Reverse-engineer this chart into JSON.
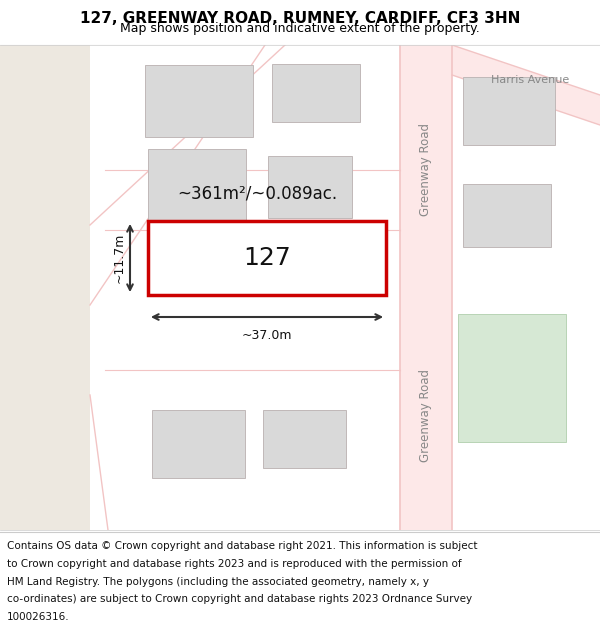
{
  "title": "127, GREENWAY ROAD, RUMNEY, CARDIFF, CF3 3HN",
  "subtitle": "Map shows position and indicative extent of the property.",
  "footer_lines": [
    "Contains OS data © Crown copyright and database right 2021. This information is subject",
    "to Crown copyright and database rights 2023 and is reproduced with the permission of",
    "HM Land Registry. The polygons (including the associated geometry, namely x, y",
    "co-ordinates) are subject to Crown copyright and database rights 2023 Ordnance Survey",
    "100026316."
  ],
  "bg_left_color": "#ede8e0",
  "road_color": "#f2c4c4",
  "road_fill": "#fde8e8",
  "building_fill": "#d9d9d9",
  "building_edge": "#c0b8b8",
  "highlight_fill": "#ffffff",
  "highlight_edge": "#cc0000",
  "green_area": "#d6e8d4",
  "map_bg": "#ffffff",
  "area_text": "~361m²/~0.089ac.",
  "width_text": "~37.0m",
  "height_text": "~11.7m",
  "number_text": "127",
  "road_label1": "Greenway Road",
  "road_label2": "Greenway Road",
  "street_label": "Harris Avenue",
  "title_fontsize": 11,
  "subtitle_fontsize": 9,
  "footer_fontsize": 7.5,
  "divider_color": "#cccccc"
}
